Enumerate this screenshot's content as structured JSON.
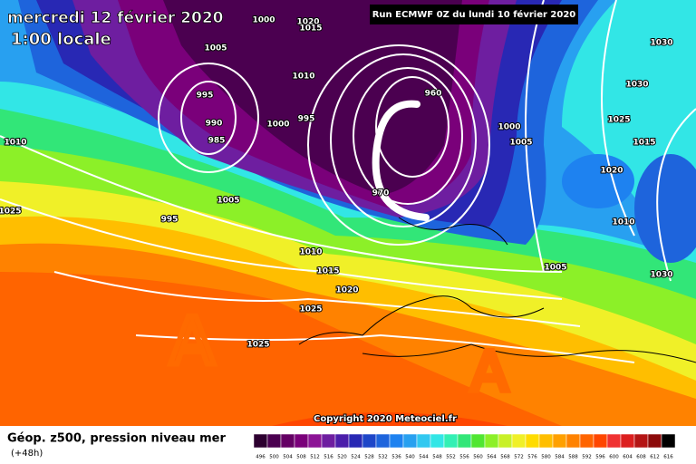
{
  "header": {
    "date": "mercredi 12 février 2020",
    "time": "1:00 locale",
    "run": "Run ECMWF 0Z du lundi 10 février 2020"
  },
  "copyright": "Copyright 2020 Meteociel.fr",
  "annotations": [
    "A",
    "A"
  ],
  "isobar_labels": [
    "1000",
    "1020",
    "1015",
    "1005",
    "1010",
    "995",
    "990",
    "985",
    "1000",
    "995",
    "960",
    "970",
    "1000",
    "1005",
    "1010",
    "1005",
    "995",
    "1025",
    "1010",
    "1015",
    "1020",
    "1025",
    "1025",
    "1005",
    "1030",
    "1030",
    "1025",
    "1015",
    "1020",
    "1010",
    "1030"
  ],
  "legend": {
    "label": "Géop. z500, pression niveau mer",
    "lead": "(+48h)",
    "values": [
      496,
      500,
      504,
      508,
      512,
      516,
      520,
      524,
      528,
      532,
      536,
      540,
      544,
      548,
      552,
      556,
      560,
      564,
      568,
      572,
      576,
      580,
      584,
      588,
      592,
      596,
      600,
      604,
      608,
      612,
      616
    ],
    "colors": [
      "#2d0030",
      "#4b0050",
      "#640064",
      "#7a007a",
      "#8c1496",
      "#6e1ea0",
      "#4b1eaa",
      "#2828b4",
      "#1e46c8",
      "#1e64dc",
      "#1e82f0",
      "#28a0f0",
      "#32c8f0",
      "#32e6e6",
      "#32f0b4",
      "#32e678",
      "#50e632",
      "#8cf028",
      "#c8f028",
      "#f0f028",
      "#ffdc00",
      "#ffbe00",
      "#ffa000",
      "#ff8200",
      "#ff6400",
      "#ff4600",
      "#f03232",
      "#dc1e1e",
      "#b41414",
      "#8c0a0a",
      "#000000"
    ]
  }
}
